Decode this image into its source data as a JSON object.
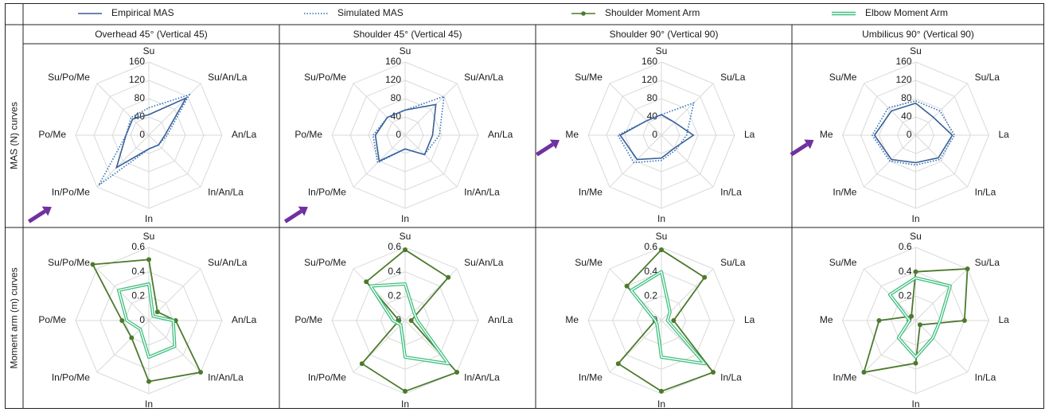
{
  "legend": [
    {
      "label": "Empirical MAS",
      "color": "#3a5f95",
      "style": "solid"
    },
    {
      "label": "Simulated MAS",
      "color": "#2f6fb8",
      "style": "dotted"
    },
    {
      "label": "Shoulder Moment Arm",
      "color": "#4c7a2c",
      "style": "solid-markers"
    },
    {
      "label": "Elbow Moment Arm",
      "color": "#3fbf7f",
      "style": "double"
    }
  ],
  "columns": [
    "Overhead 45° (Vertical 45)",
    "Shoulder 45° (Vertical 45)",
    "Shoulder 90° (Vertical 90)",
    "Umbilicus 90° (Vertical 90)"
  ],
  "rows": [
    "MAS (N) curves",
    "Moment arm (m) curves"
  ],
  "chart_data": [
    {
      "type": "radar",
      "row": 0,
      "col": 0,
      "rmax": 160,
      "ticks": [
        "0",
        "40",
        "80",
        "120",
        "160"
      ],
      "tick_values": [
        0,
        40,
        80,
        120,
        160
      ],
      "axes": [
        "Su",
        "Su/An/La",
        "An/La",
        "In/An/La",
        "In",
        "In/Po/Me",
        "Po/Me",
        "Su/Po/Me"
      ],
      "arrow_axis": 5,
      "series": [
        {
          "name": "Empirical MAS",
          "values": [
            45,
            115,
            35,
            30,
            30,
            100,
            50,
            50
          ]
        },
        {
          "name": "Simulated MAS",
          "values": [
            60,
            125,
            40,
            30,
            30,
            155,
            50,
            55
          ]
        }
      ]
    },
    {
      "type": "radar",
      "row": 0,
      "col": 1,
      "rmax": 160,
      "ticks": [
        "0",
        "40",
        "80",
        "120",
        "160"
      ],
      "tick_values": [
        0,
        40,
        80,
        120,
        160
      ],
      "axes": [
        "Su",
        "Su/An/La",
        "An/La",
        "In/An/La",
        "In",
        "In/Po/Me",
        "Po/Me",
        "Su/Po/Me"
      ],
      "arrow_axis": 5,
      "series": [
        {
          "name": "Empirical MAS",
          "values": [
            55,
            95,
            60,
            60,
            30,
            80,
            65,
            55
          ]
        },
        {
          "name": "Simulated MAS",
          "values": [
            55,
            120,
            75,
            60,
            30,
            85,
            70,
            55
          ]
        }
      ]
    },
    {
      "type": "radar",
      "row": 0,
      "col": 2,
      "rmax": 160,
      "ticks": [
        "0",
        "40",
        "80",
        "120",
        "160"
      ],
      "tick_values": [
        0,
        40,
        80,
        120,
        160
      ],
      "axes": [
        "Su",
        "Su/La",
        "La",
        "In/La",
        "In",
        "In/Me",
        "Me",
        "Su/Me"
      ],
      "arrow_axis": 6,
      "series": [
        {
          "name": "Empirical MAS",
          "values": [
            45,
            40,
            70,
            40,
            50,
            75,
            90,
            45
          ]
        },
        {
          "name": "Simulated MAS",
          "values": [
            45,
            100,
            55,
            45,
            55,
            85,
            95,
            45
          ]
        }
      ]
    },
    {
      "type": "radar",
      "row": 0,
      "col": 3,
      "rmax": 160,
      "ticks": [
        "0",
        "40",
        "80",
        "120",
        "160"
      ],
      "tick_values": [
        0,
        40,
        80,
        120,
        160
      ],
      "axes": [
        "Su",
        "Su/La",
        "La",
        "In/La",
        "In",
        "In/Me",
        "Me",
        "Su/Me"
      ],
      "arrow_axis": 6,
      "series": [
        {
          "name": "Empirical MAS",
          "values": [
            70,
            55,
            80,
            70,
            60,
            75,
            90,
            75
          ]
        },
        {
          "name": "Simulated MAS",
          "values": [
            75,
            75,
            85,
            75,
            65,
            80,
            95,
            85
          ]
        }
      ]
    },
    {
      "type": "radar",
      "row": 1,
      "col": 0,
      "rmax": 0.6,
      "ticks": [
        "0",
        "0.2",
        "0.4",
        "0.6"
      ],
      "tick_values": [
        0,
        0.2,
        0.4,
        0.6
      ],
      "axes": [
        "Su",
        "Su/An/La",
        "An/La",
        "In/An/La",
        "In",
        "In/Po/Me",
        "Po/Me",
        "Su/Po/Me"
      ],
      "series": [
        {
          "name": "Shoulder Moment Arm",
          "values": [
            0.5,
            0.1,
            0.22,
            0.6,
            0.5,
            0.2,
            0.22,
            0.65
          ]
        },
        {
          "name": "Elbow Moment Arm",
          "values": [
            0.3,
            0.05,
            0.2,
            0.3,
            0.3,
            0.1,
            0.18,
            0.35
          ]
        }
      ]
    },
    {
      "type": "radar",
      "row": 1,
      "col": 1,
      "rmax": 0.6,
      "ticks": [
        "0",
        "0.2",
        "0.4",
        "0.6"
      ],
      "tick_values": [
        0,
        0.2,
        0.4,
        0.6
      ],
      "axes": [
        "Su",
        "Su/An/La",
        "An/La",
        "In/An/La",
        "In",
        "In/Po/Me",
        "Po/Me",
        "Su/Po/Me"
      ],
      "series": [
        {
          "name": "Shoulder Moment Arm",
          "values": [
            0.58,
            0.5,
            0.05,
            0.6,
            0.58,
            0.5,
            0.05,
            0.45
          ]
        },
        {
          "name": "Elbow Moment Arm",
          "values": [
            0.3,
            0.1,
            0.1,
            0.5,
            0.3,
            0.05,
            0.1,
            0.4
          ]
        }
      ]
    },
    {
      "type": "radar",
      "row": 1,
      "col": 2,
      "rmax": 0.6,
      "ticks": [
        "0",
        "0.2",
        "0.4",
        "0.6"
      ],
      "tick_values": [
        0,
        0.2,
        0.4,
        0.6
      ],
      "axes": [
        "Su",
        "Su/La",
        "La",
        "In/La",
        "In",
        "In/Me",
        "Me",
        "Su/Me"
      ],
      "series": [
        {
          "name": "Shoulder Moment Arm",
          "values": [
            0.58,
            0.5,
            0.1,
            0.6,
            0.58,
            0.5,
            0.05,
            0.4
          ]
        },
        {
          "name": "Elbow Moment Arm",
          "values": [
            0.4,
            0.1,
            0.05,
            0.5,
            0.3,
            0.05,
            0.05,
            0.35
          ]
        }
      ]
    },
    {
      "type": "radar",
      "row": 1,
      "col": 3,
      "rmax": 0.6,
      "ticks": [
        "0",
        "0.2",
        "0.4",
        "0.6"
      ],
      "tick_values": [
        0,
        0.2,
        0.4,
        0.6
      ],
      "axes": [
        "Su",
        "Su/La",
        "La",
        "In/La",
        "In",
        "In/Me",
        "Me",
        "Su/Me"
      ],
      "series": [
        {
          "name": "Shoulder Moment Arm",
          "values": [
            0.4,
            0.6,
            0.4,
            0.05,
            0.35,
            0.6,
            0.3,
            0.05
          ]
        },
        {
          "name": "Elbow Moment Arm",
          "values": [
            0.35,
            0.4,
            0.2,
            0.2,
            0.3,
            0.2,
            0.05,
            0.3
          ]
        }
      ]
    }
  ]
}
